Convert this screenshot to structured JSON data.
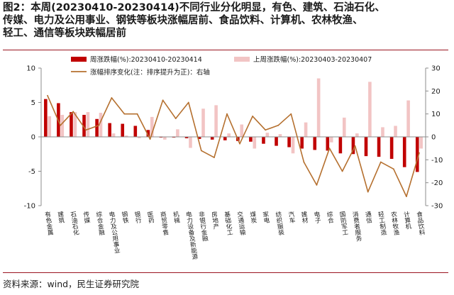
{
  "figure": {
    "title_line1": "图2：本周(20230410-20230414)不同行业分化明显，有色、建筑、石油石化、",
    "title_line2": "传媒、电力及公用事业、钢铁等板块涨幅居前、食品饮料、计算机、农林牧渔、",
    "title_line3": "轻工、通信等板块跌幅居前",
    "source": "资料来源：wind，民生证券研究院"
  },
  "colors": {
    "this_week": "#c00000",
    "last_week": "#f2c4c4",
    "rank_line": "#b5702f",
    "rule": "#9a1420"
  },
  "chart_data": {
    "type": "bar",
    "categories": [
      "有色金属",
      "建筑",
      "石油石化",
      "传媒",
      "综合金融",
      "电力及公用事业",
      "钢铁",
      "银行",
      "医药",
      "商贸零售",
      "机械",
      "电力设备及新能源",
      "非银行金融",
      "房地产",
      "基础化工",
      "交通运输",
      "煤炭",
      "家电",
      "纺织服装",
      "汽车",
      "建材",
      "电子",
      "综合",
      "国防军工",
      "消费者服务",
      "通信",
      "轻工制造",
      "农林牧渔",
      "计算机",
      "食品饮料"
    ],
    "series": [
      {
        "name": "周涨跌幅(%):20230410-20230414",
        "axis": "left",
        "kind": "bar",
        "values": [
          5.5,
          4.9,
          3.6,
          3.2,
          2.6,
          2.0,
          1.9,
          1.6,
          1.0,
          -0.1,
          -0.1,
          -0.2,
          -0.3,
          -0.4,
          -0.5,
          -0.6,
          -0.7,
          -1.0,
          -1.3,
          -1.5,
          -1.7,
          -1.9,
          -2.0,
          -2.4,
          -2.5,
          -2.8,
          -2.9,
          -3.2,
          -4.4,
          -5.1
        ]
      },
      {
        "name": "上周涨跌幅(%):20230403-20230407",
        "axis": "left",
        "kind": "bar",
        "values": [
          3.0,
          3.2,
          3.6,
          3.6,
          3.5,
          0.5,
          0.2,
          -0.2,
          2.9,
          -0.4,
          1.1,
          -1.6,
          4.1,
          4.6,
          0.5,
          1.8,
          -1.7,
          0.6,
          0.4,
          -2.4,
          2.1,
          8.5,
          -0.8,
          2.8,
          0.5,
          8.0,
          1.4,
          1.6,
          5.3,
          -1.7
        ]
      },
      {
        "name": "涨幅排序变化(注：排序提升为正)：右轴",
        "axis": "right",
        "kind": "line",
        "values": [
          18,
          5,
          11,
          3,
          5,
          17,
          10,
          10,
          -1,
          16,
          8,
          15,
          -6,
          -9,
          10,
          -3,
          9,
          3,
          5,
          10,
          -11,
          -21,
          -5,
          -15,
          -4,
          -24,
          -11,
          -14,
          -26,
          -7
        ]
      }
    ],
    "left_axis": {
      "ylim": [
        -10,
        10
      ],
      "ticks": [
        -10,
        -5,
        0,
        5,
        10
      ]
    },
    "right_axis": {
      "ylim": [
        -30,
        30
      ],
      "ticks": [
        -30,
        -20,
        -10,
        0,
        10,
        20,
        30
      ]
    },
    "legend_placement": "top",
    "grid": false
  }
}
